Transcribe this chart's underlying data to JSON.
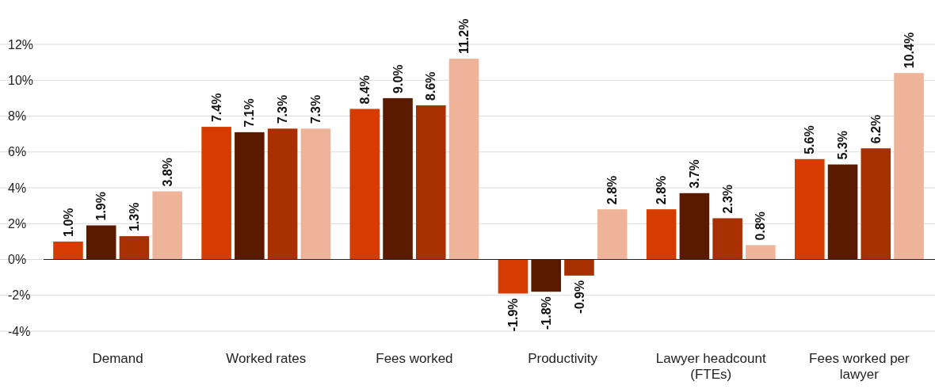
{
  "chart_data": {
    "type": "bar",
    "categories": [
      "Demand",
      "Worked rates",
      "Fees worked",
      "Productivity",
      "Lawyer headcount (FTEs)",
      "Fees worked per lawyer"
    ],
    "series": [
      {
        "color": "#d63c00",
        "values": [
          1.0,
          7.4,
          8.4,
          -1.9,
          2.8,
          5.6
        ],
        "value_labels": [
          "1.0%",
          "7.4%",
          "8.4%",
          "-1.9%",
          "2.8%",
          "5.6%"
        ]
      },
      {
        "color": "#5a1a00",
        "values": [
          1.9,
          7.1,
          9.0,
          -1.8,
          3.7,
          5.3
        ],
        "value_labels": [
          "1.9%",
          "7.1%",
          "9.0%",
          "-1.8%",
          "3.7%",
          "5.3%"
        ]
      },
      {
        "color": "#a83000",
        "values": [
          1.3,
          7.3,
          8.6,
          -0.9,
          2.3,
          6.2
        ],
        "value_labels": [
          "1.3%",
          "7.3%",
          "8.6%",
          "-0.9%",
          "2.3%",
          "6.2%"
        ]
      },
      {
        "color": "#efb39a",
        "values": [
          3.8,
          7.3,
          11.2,
          2.8,
          0.8,
          10.4
        ],
        "value_labels": [
          "3.8%",
          "7.3%",
          "11.2%",
          "2.8%",
          "0.8%",
          "10.4%"
        ]
      }
    ],
    "ylim": [
      -4,
      12
    ],
    "yticks": [
      {
        "value": -4,
        "label": "-4%"
      },
      {
        "value": -2,
        "label": "-2%"
      },
      {
        "value": 0,
        "label": "0%"
      },
      {
        "value": 2,
        "label": "2%"
      },
      {
        "value": 4,
        "label": "4%"
      },
      {
        "value": 6,
        "label": "6%"
      },
      {
        "value": 8,
        "label": "8%"
      },
      {
        "value": 10,
        "label": "10%"
      },
      {
        "value": 12,
        "label": "12%"
      }
    ],
    "grid": "y"
  }
}
